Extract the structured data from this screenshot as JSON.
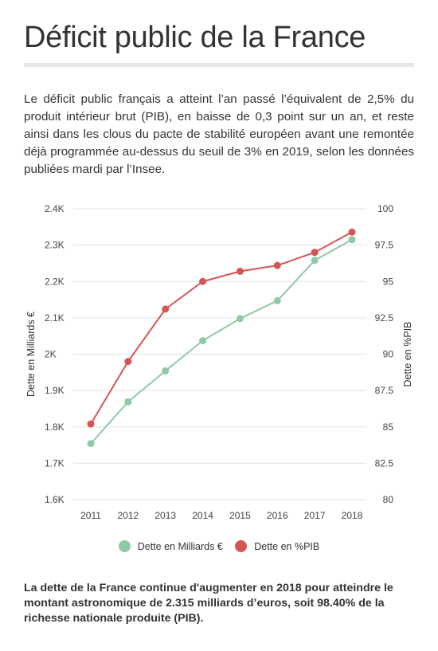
{
  "header": {
    "title": "Déficit public de la France",
    "intro": "Le déficit public français a atteint l’an passé l’équivalent de 2,5% du produit intérieur brut (PIB), en baisse de 0,3 point sur un an, et reste ainsi dans les clous du pacte de stabilité européen avant une remontée déjà programmée au-dessus du seuil de 3% en 2019, selon les données publiées mardi par l’Insee."
  },
  "chart_data": {
    "type": "line",
    "categories": [
      "2011",
      "2012",
      "2013",
      "2014",
      "2015",
      "2016",
      "2017",
      "2018"
    ],
    "series": [
      {
        "name": "Dette en Milliards €",
        "axis": "left",
        "color": "#8fc9a6",
        "values": [
          1754,
          1869,
          1954,
          2037,
          2098,
          2147,
          2258,
          2315
        ]
      },
      {
        "name": "Dette en %PIB",
        "axis": "right",
        "color": "#d45555",
        "values": [
          85.2,
          89.5,
          93.1,
          95.0,
          95.7,
          96.1,
          97.0,
          98.4
        ]
      }
    ],
    "y_left": {
      "label": "Dette en Milliards €",
      "range": [
        1600,
        2400
      ],
      "ticks": [
        "1.6K",
        "1.7K",
        "1.8K",
        "1.9K",
        "2K",
        "2.1K",
        "2.2K",
        "2.3K",
        "2.4K"
      ]
    },
    "y_right": {
      "label": "Dette en %PIB",
      "range": [
        80,
        100
      ],
      "ticks": [
        "80",
        "82.5",
        "85",
        "87.5",
        "90",
        "92.5",
        "95",
        "97.5",
        "100"
      ]
    },
    "grid": true,
    "legend": "bottom"
  },
  "footer": {
    "summary": "La dette de la France continue d'augmenter en 2018 pour atteindre le montant astronomique de 2.315 milliards d’euros, soit 98.40% de la richesse nationale produite (PIB)."
  }
}
